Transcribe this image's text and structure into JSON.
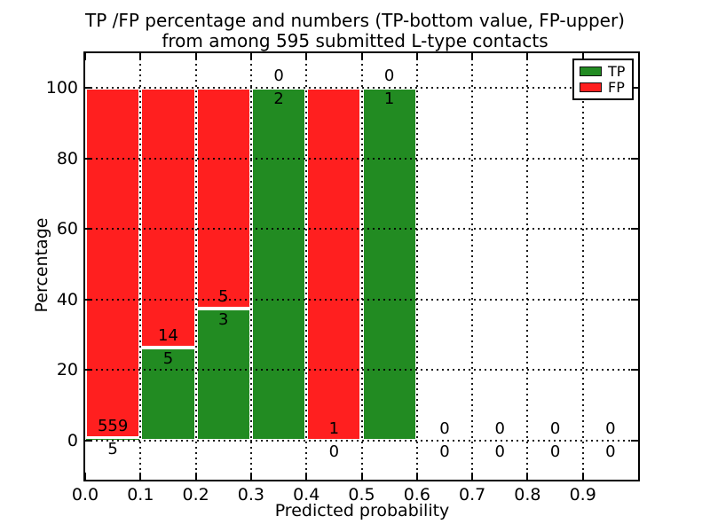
{
  "chart_data": {
    "type": "bar",
    "subtype": "stacked-percentage-histogram",
    "title_line1": "TP /FP percentage and numbers (TP-bottom value, FP-upper)",
    "title_line2": "from among 595 submitted L-type contacts",
    "total_submitted": 595,
    "xlabel": "Predicted probability",
    "ylabel": "Percentage",
    "xlim": [
      0.0,
      1.0
    ],
    "ylim": [
      -12,
      110
    ],
    "xticks": [
      0.0,
      0.1,
      0.2,
      0.3,
      0.4,
      0.5,
      0.6,
      0.7,
      0.8,
      0.9
    ],
    "xtick_labels": [
      "0.0",
      "0.1",
      "0.2",
      "0.3",
      "0.4",
      "0.5",
      "0.6",
      "0.7",
      "0.8",
      "0.9"
    ],
    "yticks": [
      0,
      20,
      40,
      60,
      80,
      100
    ],
    "ytick_labels": [
      "0",
      "20",
      "40",
      "60",
      "80",
      "100"
    ],
    "grid": {
      "style": "dotted",
      "color": "#000000",
      "drawn_above_bars": true
    },
    "categories": [
      "0.0-0.1",
      "0.1-0.2",
      "0.2-0.3",
      "0.3-0.4",
      "0.4-0.5",
      "0.5-0.6",
      "0.6-0.7",
      "0.7-0.8",
      "0.8-0.9",
      "0.9-1.0"
    ],
    "series": [
      {
        "name": "TP",
        "color": "#228b22",
        "counts": [
          5,
          5,
          3,
          2,
          0,
          1,
          0,
          0,
          0,
          0
        ],
        "percentages": [
          0.89,
          26.32,
          37.5,
          100,
          0,
          100,
          0,
          0,
          0,
          0
        ]
      },
      {
        "name": "FP",
        "color": "#ff1f1f",
        "counts": [
          559,
          14,
          5,
          0,
          1,
          0,
          0,
          0,
          0,
          0
        ],
        "percentages": [
          99.11,
          73.68,
          62.5,
          0,
          100,
          0,
          0,
          0,
          0,
          0
        ]
      }
    ],
    "colors": {
      "tp": "#228b22",
      "fp": "#ff1f1f",
      "bar_edge": "#ffffff",
      "spine": "#000000",
      "background": "#ffffff",
      "text": "#000000"
    },
    "legend": {
      "position": "upper-right",
      "entries": [
        {
          "label": "TP",
          "color": "#228b22"
        },
        {
          "label": "FP",
          "color": "#ff1f1f"
        }
      ]
    }
  }
}
